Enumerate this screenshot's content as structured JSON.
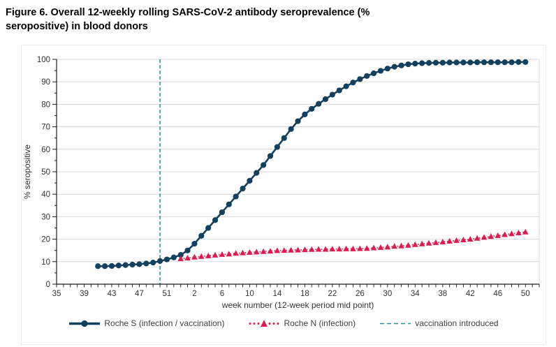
{
  "header": {
    "title": "Figure 6. Overall 12-weekly rolling SARS-CoV-2 antibody seroprevalence (%\nseropositive) in blood donors"
  },
  "chart_data": {
    "type": "line",
    "title": "Figure 6. Overall 12-weekly rolling SARS-CoV-2 antibody seroprevalence (% seropositive) in blood donors",
    "xlabel": "week number (12-week period mid point)",
    "ylabel": "% seropositive",
    "ylim": [
      0,
      100
    ],
    "ytick_step": 10,
    "grid": "horizontal",
    "legend_position": "bottom",
    "y_tick_labels": [
      "0",
      "10",
      "20",
      "30",
      "40",
      "50",
      "60",
      "70",
      "80",
      "90",
      "100"
    ],
    "x_axis": {
      "description": "weekly points, ISO week numbers from week 35 of 2020 (index 0) to week 52 of 2021 (index 70); 2020 has 53 weeks; labels every 4 weeks",
      "week_intervals": 70,
      "tick_label_every": 4,
      "tick_labels": [
        "35",
        "39",
        "43",
        "47",
        "51",
        "2",
        "6",
        "10",
        "14",
        "18",
        "22",
        "26",
        "30",
        "34",
        "38",
        "42",
        "46",
        "50"
      ]
    },
    "vline": {
      "label": "vaccination introduced",
      "week_index": 15,
      "week_label": "50 (2020)",
      "color": "#2f8c9e",
      "style": "dashed"
    },
    "series": [
      {
        "name": "Roche S (infection / vaccination)",
        "marker": "circle",
        "line": "solid",
        "color": "#12405e",
        "start_week_index": 6,
        "start_week_label": "41 (2020)",
        "values": [
          8.0,
          8.0,
          8.1,
          8.3,
          8.5,
          8.7,
          8.9,
          9.2,
          9.6,
          10.3,
          11.0,
          11.9,
          13.0,
          15.0,
          18.0,
          21.5,
          25.0,
          28.5,
          32.0,
          35.5,
          39.0,
          42.5,
          46.0,
          49.5,
          53.0,
          57.0,
          61.0,
          65.0,
          69.0,
          72.5,
          75.5,
          78.0,
          80.2,
          82.3,
          84.3,
          86.2,
          88.0,
          89.7,
          91.2,
          92.6,
          93.8,
          94.9,
          95.9,
          96.7,
          97.3,
          97.8,
          98.1,
          98.3,
          98.4,
          98.5,
          98.5,
          98.6,
          98.6,
          98.6,
          98.6,
          98.7,
          98.7,
          98.7,
          98.7,
          98.7,
          98.7,
          98.8,
          98.8
        ]
      },
      {
        "name": "Roche N (infection)",
        "marker": "triangle",
        "line": "dotted",
        "color": "#df1a4e",
        "start_week_index": 18,
        "start_week_label": "53 (2020)",
        "values": [
          11.3,
          11.6,
          12.0,
          12.3,
          12.6,
          12.9,
          13.2,
          13.4,
          13.7,
          13.9,
          14.1,
          14.3,
          14.5,
          14.7,
          14.9,
          15.0,
          15.1,
          15.2,
          15.3,
          15.4,
          15.5,
          15.5,
          15.6,
          15.6,
          15.7,
          15.7,
          15.8,
          15.9,
          16.1,
          16.3,
          16.5,
          16.8,
          17.0,
          17.3,
          17.6,
          17.9,
          18.2,
          18.5,
          18.8,
          19.1,
          19.4,
          19.7,
          20.0,
          20.4,
          20.8,
          21.2,
          21.6,
          22.0,
          22.4,
          22.8,
          23.2
        ]
      }
    ],
    "colors": {
      "grid": "#d9d9d9",
      "axis": "#1a1a1a",
      "tick_text": "#333333",
      "legend_text": "#404040"
    }
  }
}
